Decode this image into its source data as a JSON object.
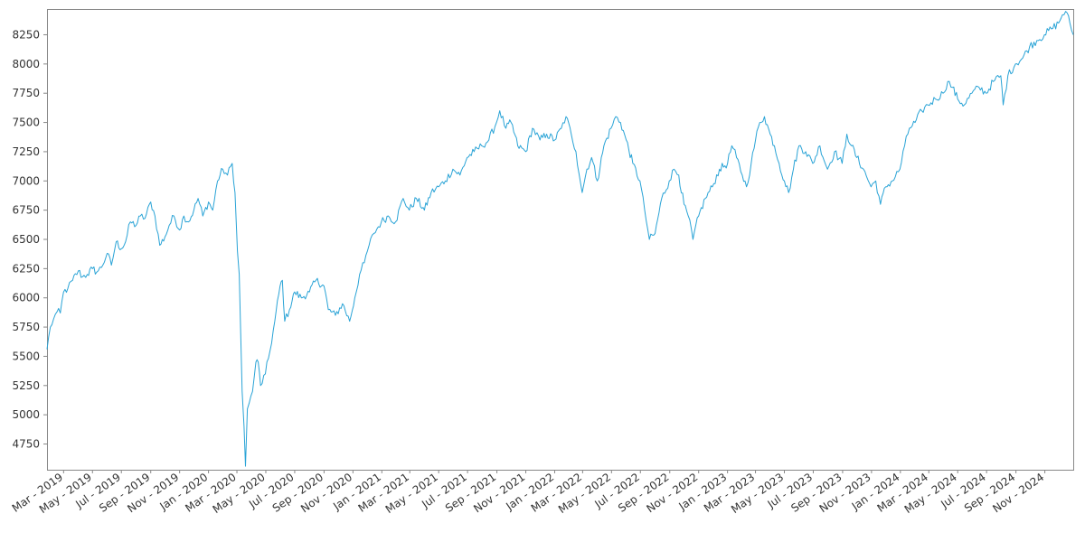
{
  "chart_data": {
    "type": "line",
    "title": "",
    "xlabel": "",
    "ylabel": "",
    "grid": false,
    "legend": "none",
    "line_color": "#29a3d6",
    "xlim": [
      "2019-01-25",
      "2024-12-31"
    ],
    "ylim": [
      4530,
      8470
    ],
    "y_ticks": [
      4750,
      5000,
      5250,
      5500,
      5750,
      6000,
      6250,
      6500,
      6750,
      7000,
      7250,
      7500,
      7750,
      8000,
      8250
    ],
    "x_ticks": [
      {
        "date": "2019-03-01",
        "label": "Mar - 2019"
      },
      {
        "date": "2019-05-01",
        "label": "May - 2019"
      },
      {
        "date": "2019-07-01",
        "label": "Jul - 2019"
      },
      {
        "date": "2019-09-01",
        "label": "Sep - 2019"
      },
      {
        "date": "2019-11-01",
        "label": "Nov - 2019"
      },
      {
        "date": "2020-01-01",
        "label": "Jan - 2020"
      },
      {
        "date": "2020-03-01",
        "label": "Mar - 2020"
      },
      {
        "date": "2020-05-01",
        "label": "May - 2020"
      },
      {
        "date": "2020-07-01",
        "label": "Jul - 2020"
      },
      {
        "date": "2020-09-01",
        "label": "Sep - 2020"
      },
      {
        "date": "2020-11-01",
        "label": "Nov - 2020"
      },
      {
        "date": "2021-01-01",
        "label": "Jan - 2021"
      },
      {
        "date": "2021-03-01",
        "label": "Mar - 2021"
      },
      {
        "date": "2021-05-01",
        "label": "May - 2021"
      },
      {
        "date": "2021-07-01",
        "label": "Jul - 2021"
      },
      {
        "date": "2021-09-01",
        "label": "Sep - 2021"
      },
      {
        "date": "2021-11-01",
        "label": "Nov - 2021"
      },
      {
        "date": "2022-01-01",
        "label": "Jan - 2022"
      },
      {
        "date": "2022-03-01",
        "label": "Mar - 2022"
      },
      {
        "date": "2022-05-01",
        "label": "May - 2022"
      },
      {
        "date": "2022-07-01",
        "label": "Jul - 2022"
      },
      {
        "date": "2022-09-01",
        "label": "Sep - 2022"
      },
      {
        "date": "2022-11-01",
        "label": "Nov - 2022"
      },
      {
        "date": "2023-01-01",
        "label": "Jan - 2023"
      },
      {
        "date": "2023-03-01",
        "label": "Mar - 2023"
      },
      {
        "date": "2023-05-01",
        "label": "May - 2023"
      },
      {
        "date": "2023-07-01",
        "label": "Jul - 2023"
      },
      {
        "date": "2023-09-01",
        "label": "Sep - 2023"
      },
      {
        "date": "2023-11-01",
        "label": "Nov - 2023"
      },
      {
        "date": "2024-01-01",
        "label": "Jan - 2024"
      },
      {
        "date": "2024-03-01",
        "label": "Mar - 2024"
      },
      {
        "date": "2024-05-01",
        "label": "May - 2024"
      },
      {
        "date": "2024-07-01",
        "label": "Jul - 2024"
      },
      {
        "date": "2024-09-01",
        "label": "Sep - 2024"
      },
      {
        "date": "2024-11-01",
        "label": "Nov - 2024"
      }
    ],
    "series": [
      {
        "points": [
          [
            "2019-01-25",
            5560
          ],
          [
            "2019-02-01",
            5750
          ],
          [
            "2019-02-08",
            5820
          ],
          [
            "2019-02-15",
            5880
          ],
          [
            "2019-02-22",
            5870
          ],
          [
            "2019-03-01",
            6050
          ],
          [
            "2019-03-10",
            6080
          ],
          [
            "2019-03-20",
            6150
          ],
          [
            "2019-04-01",
            6230
          ],
          [
            "2019-04-10",
            6180
          ],
          [
            "2019-04-20",
            6200
          ],
          [
            "2019-05-01",
            6250
          ],
          [
            "2019-05-10",
            6220
          ],
          [
            "2019-05-20",
            6260
          ],
          [
            "2019-06-01",
            6380
          ],
          [
            "2019-06-10",
            6280
          ],
          [
            "2019-06-20",
            6480
          ],
          [
            "2019-07-01",
            6420
          ],
          [
            "2019-07-10",
            6480
          ],
          [
            "2019-07-20",
            6650
          ],
          [
            "2019-08-01",
            6620
          ],
          [
            "2019-08-10",
            6700
          ],
          [
            "2019-08-20",
            6680
          ],
          [
            "2019-09-01",
            6820
          ],
          [
            "2019-09-10",
            6700
          ],
          [
            "2019-09-20",
            6450
          ],
          [
            "2019-10-01",
            6520
          ],
          [
            "2019-10-10",
            6620
          ],
          [
            "2019-10-20",
            6700
          ],
          [
            "2019-11-01",
            6580
          ],
          [
            "2019-11-10",
            6700
          ],
          [
            "2019-11-20",
            6650
          ],
          [
            "2019-12-01",
            6750
          ],
          [
            "2019-12-10",
            6850
          ],
          [
            "2019-12-20",
            6700
          ],
          [
            "2020-01-01",
            6820
          ],
          [
            "2020-01-10",
            6750
          ],
          [
            "2020-01-20",
            7000
          ],
          [
            "2020-01-31",
            7100
          ],
          [
            "2020-02-10",
            7050
          ],
          [
            "2020-02-20",
            7150
          ],
          [
            "2020-02-26",
            6900
          ],
          [
            "2020-03-02",
            6400
          ],
          [
            "2020-03-06",
            6200
          ],
          [
            "2020-03-09",
            5700
          ],
          [
            "2020-03-12",
            5200
          ],
          [
            "2020-03-16",
            4900
          ],
          [
            "2020-03-19",
            4560
          ],
          [
            "2020-03-23",
            5050
          ],
          [
            "2020-03-27",
            5100
          ],
          [
            "2020-04-03",
            5200
          ],
          [
            "2020-04-10",
            5450
          ],
          [
            "2020-04-15",
            5450
          ],
          [
            "2020-04-20",
            5250
          ],
          [
            "2020-04-30",
            5350
          ],
          [
            "2020-05-10",
            5550
          ],
          [
            "2020-05-20",
            5800
          ],
          [
            "2020-05-31",
            6100
          ],
          [
            "2020-06-05",
            6150
          ],
          [
            "2020-06-10",
            5800
          ],
          [
            "2020-06-20",
            5900
          ],
          [
            "2020-07-01",
            6050
          ],
          [
            "2020-07-15",
            6000
          ],
          [
            "2020-08-01",
            6050
          ],
          [
            "2020-08-15",
            6150
          ],
          [
            "2020-09-01",
            6100
          ],
          [
            "2020-09-10",
            5900
          ],
          [
            "2020-09-25",
            5850
          ],
          [
            "2020-10-10",
            5950
          ],
          [
            "2020-10-25",
            5800
          ],
          [
            "2020-11-05",
            6000
          ],
          [
            "2020-11-15",
            6200
          ],
          [
            "2020-11-25",
            6300
          ],
          [
            "2020-12-05",
            6450
          ],
          [
            "2020-12-15",
            6550
          ],
          [
            "2020-12-31",
            6650
          ],
          [
            "2021-01-15",
            6700
          ],
          [
            "2021-01-30",
            6650
          ],
          [
            "2021-02-15",
            6850
          ],
          [
            "2021-02-28",
            6750
          ],
          [
            "2021-03-15",
            6850
          ],
          [
            "2021-04-01",
            6750
          ],
          [
            "2021-04-15",
            6900
          ],
          [
            "2021-05-01",
            6950
          ],
          [
            "2021-05-15",
            7000
          ],
          [
            "2021-05-31",
            7100
          ],
          [
            "2021-06-15",
            7050
          ],
          [
            "2021-06-30",
            7200
          ],
          [
            "2021-07-15",
            7250
          ],
          [
            "2021-07-31",
            7300
          ],
          [
            "2021-08-15",
            7350
          ],
          [
            "2021-08-31",
            7500
          ],
          [
            "2021-09-07",
            7600
          ],
          [
            "2021-09-20",
            7450
          ],
          [
            "2021-10-01",
            7500
          ],
          [
            "2021-10-15",
            7300
          ],
          [
            "2021-11-01",
            7250
          ],
          [
            "2021-11-15",
            7450
          ],
          [
            "2021-12-01",
            7350
          ],
          [
            "2021-12-15",
            7400
          ],
          [
            "2022-01-01",
            7350
          ],
          [
            "2022-01-15",
            7450
          ],
          [
            "2022-01-25",
            7550
          ],
          [
            "2022-02-05",
            7400
          ],
          [
            "2022-02-15",
            7250
          ],
          [
            "2022-02-28",
            6900
          ],
          [
            "2022-03-10",
            7100
          ],
          [
            "2022-03-20",
            7200
          ],
          [
            "2022-04-01",
            7000
          ],
          [
            "2022-04-15",
            7300
          ],
          [
            "2022-04-30",
            7450
          ],
          [
            "2022-05-10",
            7550
          ],
          [
            "2022-05-20",
            7500
          ],
          [
            "2022-06-01",
            7350
          ],
          [
            "2022-06-15",
            7150
          ],
          [
            "2022-06-30",
            7000
          ],
          [
            "2022-07-10",
            6750
          ],
          [
            "2022-07-20",
            6500
          ],
          [
            "2022-08-01",
            6550
          ],
          [
            "2022-08-15",
            6850
          ],
          [
            "2022-08-31",
            7000
          ],
          [
            "2022-09-10",
            7100
          ],
          [
            "2022-09-20",
            7050
          ],
          [
            "2022-10-01",
            6800
          ],
          [
            "2022-10-10",
            6700
          ],
          [
            "2022-10-20",
            6500
          ],
          [
            "2022-11-01",
            6700
          ],
          [
            "2022-11-15",
            6850
          ],
          [
            "2022-11-30",
            6950
          ],
          [
            "2022-12-15",
            7100
          ],
          [
            "2023-01-01",
            7150
          ],
          [
            "2023-01-10",
            7300
          ],
          [
            "2023-01-20",
            7200
          ],
          [
            "2023-02-01",
            7050
          ],
          [
            "2023-02-10",
            6950
          ],
          [
            "2023-02-20",
            7150
          ],
          [
            "2023-03-01",
            7350
          ],
          [
            "2023-03-10",
            7500
          ],
          [
            "2023-03-20",
            7550
          ],
          [
            "2023-04-01",
            7400
          ],
          [
            "2023-04-10",
            7300
          ],
          [
            "2023-04-20",
            7150
          ],
          [
            "2023-05-01",
            7000
          ],
          [
            "2023-05-10",
            6900
          ],
          [
            "2023-05-20",
            7100
          ],
          [
            "2023-06-01",
            7300
          ],
          [
            "2023-06-15",
            7250
          ],
          [
            "2023-06-30",
            7150
          ],
          [
            "2023-07-15",
            7300
          ],
          [
            "2023-07-31",
            7100
          ],
          [
            "2023-08-15",
            7250
          ],
          [
            "2023-08-31",
            7150
          ],
          [
            "2023-09-10",
            7400
          ],
          [
            "2023-09-20",
            7300
          ],
          [
            "2023-10-01",
            7200
          ],
          [
            "2023-10-15",
            7100
          ],
          [
            "2023-10-31",
            6950
          ],
          [
            "2023-11-10",
            7000
          ],
          [
            "2023-11-20",
            6800
          ],
          [
            "2023-12-01",
            6950
          ],
          [
            "2023-12-15",
            7000
          ],
          [
            "2023-12-31",
            7100
          ],
          [
            "2024-01-10",
            7300
          ],
          [
            "2024-01-20",
            7450
          ],
          [
            "2024-02-01",
            7500
          ],
          [
            "2024-02-15",
            7600
          ],
          [
            "2024-02-28",
            7650
          ],
          [
            "2024-03-15",
            7700
          ],
          [
            "2024-03-31",
            7750
          ],
          [
            "2024-04-10",
            7850
          ],
          [
            "2024-04-20",
            7800
          ],
          [
            "2024-05-01",
            7700
          ],
          [
            "2024-05-15",
            7650
          ],
          [
            "2024-05-31",
            7750
          ],
          [
            "2024-06-15",
            7800
          ],
          [
            "2024-06-30",
            7750
          ],
          [
            "2024-07-15",
            7850
          ],
          [
            "2024-07-31",
            7900
          ],
          [
            "2024-08-05",
            7650
          ],
          [
            "2024-08-15",
            7900
          ],
          [
            "2024-08-31",
            8000
          ],
          [
            "2024-09-15",
            8050
          ],
          [
            "2024-09-30",
            8150
          ],
          [
            "2024-10-15",
            8200
          ],
          [
            "2024-10-31",
            8250
          ],
          [
            "2024-11-15",
            8300
          ],
          [
            "2024-11-30",
            8350
          ],
          [
            "2024-12-08",
            8420
          ],
          [
            "2024-12-15",
            8450
          ],
          [
            "2024-12-24",
            8350
          ],
          [
            "2024-12-31",
            8250
          ]
        ]
      }
    ]
  }
}
